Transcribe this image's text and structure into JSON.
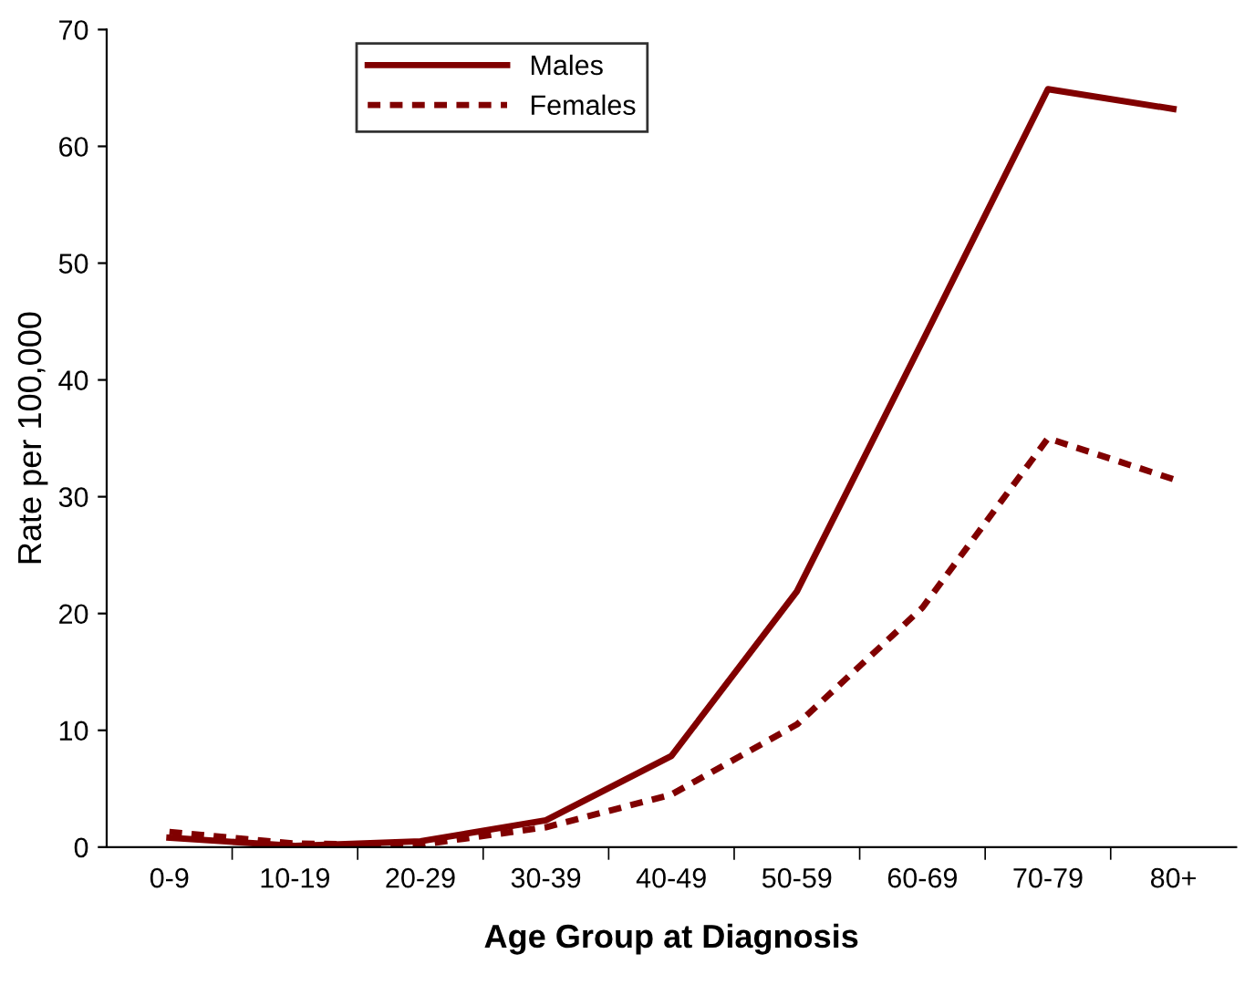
{
  "chart_data": {
    "type": "line",
    "xlabel": "Age Group at Diagnosis",
    "ylabel": "Rate per 100,000",
    "categories": [
      "0-9",
      "10-19",
      "20-29",
      "30-39",
      "40-49",
      "50-59",
      "60-69",
      "70-79",
      "80+"
    ],
    "series": [
      {
        "name": "Males",
        "color": "#800000",
        "line_style": "solid",
        "values": [
          0.8,
          0.1,
          0.5,
          2.3,
          7.8,
          21.9,
          43.3,
          64.9,
          63.2
        ]
      },
      {
        "name": "Females",
        "color": "#800000",
        "line_style": "dashed",
        "values": [
          1.3,
          0.3,
          0.2,
          1.7,
          4.5,
          10.5,
          20.5,
          35,
          31.5
        ]
      }
    ],
    "ylim": [
      0,
      70
    ],
    "yticks": [
      0,
      10,
      20,
      30,
      40,
      50,
      60,
      70
    ],
    "grid": false,
    "legend": "top",
    "marker": "none"
  }
}
